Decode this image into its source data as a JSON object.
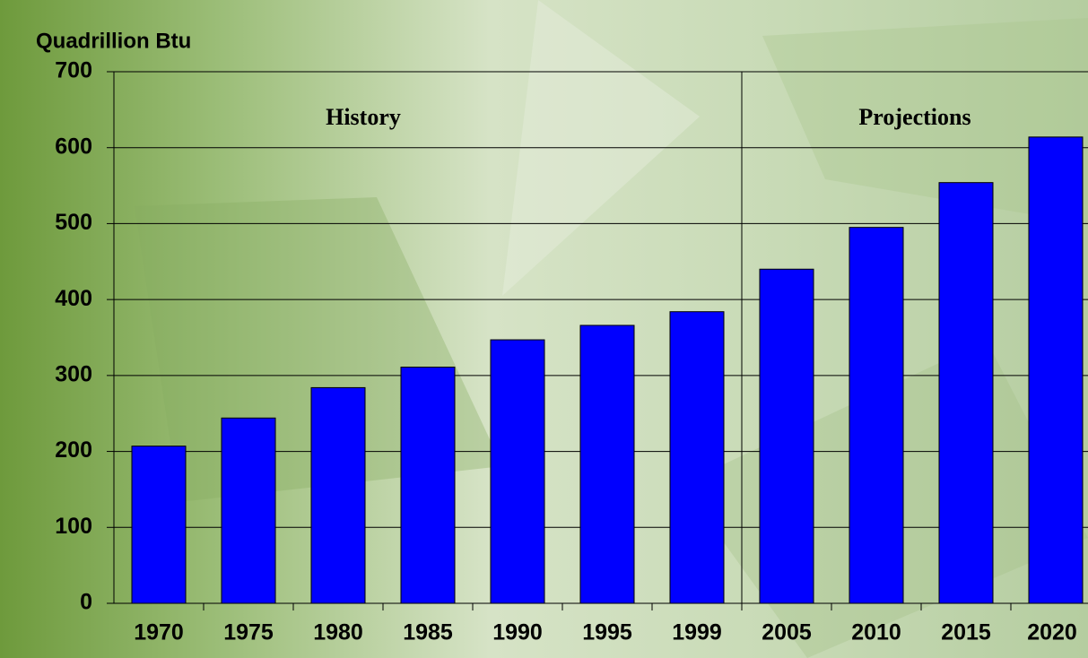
{
  "chart_data": {
    "type": "bar",
    "y_label": "Quadrillion Btu",
    "categories": [
      "1970",
      "1975",
      "1980",
      "1985",
      "1990",
      "1995",
      "1999",
      "2005",
      "2010",
      "2015",
      "2020"
    ],
    "values": [
      207,
      244,
      284,
      311,
      347,
      366,
      384,
      440,
      495,
      554,
      614
    ],
    "color": "#0000ff",
    "ylim": [
      0,
      700
    ],
    "yticks": [
      0,
      100,
      200,
      300,
      400,
      500,
      600,
      700
    ],
    "grid": true,
    "annotations": [
      "History",
      "Projections"
    ]
  }
}
